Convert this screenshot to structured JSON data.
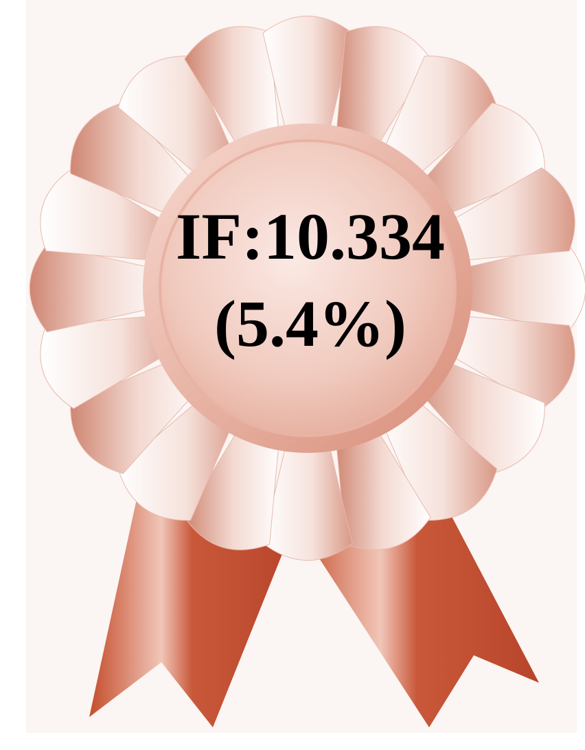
{
  "badge": {
    "line1": "IF:10.334",
    "line2": "(5.4%)"
  }
}
